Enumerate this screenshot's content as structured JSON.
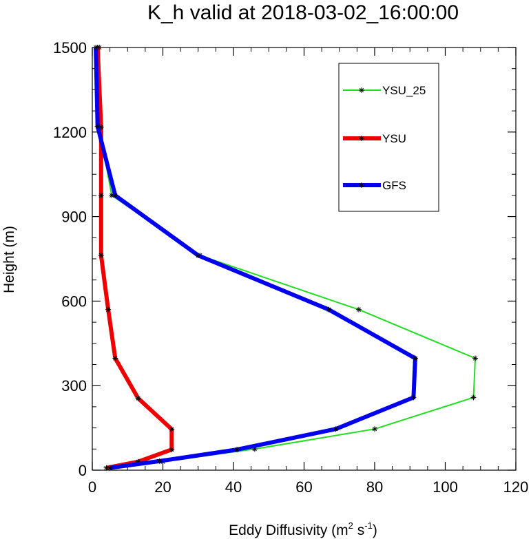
{
  "chart_data": {
    "type": "line",
    "title": "K_h valid at 2018-03-02_16:00:00",
    "xlabel": "Eddy Diffusivity (m² s⁻¹)",
    "xlabel_parts": {
      "base": "Eddy Diffusivity (m",
      "sup1": "2",
      "mid": " s",
      "sup2": "-1",
      "end": ")"
    },
    "ylabel": "Height (m)",
    "xlim": [
      0,
      120
    ],
    "ylim": [
      0,
      1500
    ],
    "xticks": [
      0,
      20,
      40,
      60,
      80,
      100,
      120
    ],
    "yticks": [
      0,
      300,
      600,
      900,
      1200,
      1500
    ],
    "grid": false,
    "legend_position": "top-right",
    "series": [
      {
        "name": "YSU_25",
        "color": "#22dd22",
        "width": 2,
        "points": [
          [
            5,
            8
          ],
          [
            20,
            30
          ],
          [
            46,
            75
          ],
          [
            80,
            146
          ],
          [
            108,
            258
          ],
          [
            108.5,
            397
          ],
          [
            75.5,
            570
          ],
          [
            30.5,
            762
          ],
          [
            5.5,
            975
          ],
          [
            2,
            1215
          ],
          [
            2,
            1500
          ]
        ]
      },
      {
        "name": "YSU",
        "color": "#ee0000",
        "width": 6,
        "points": [
          [
            4,
            8
          ],
          [
            13,
            30
          ],
          [
            22.5,
            73
          ],
          [
            22.5,
            145
          ],
          [
            13,
            255
          ],
          [
            6.5,
            397
          ],
          [
            4.5,
            570
          ],
          [
            2.5,
            762
          ],
          [
            2.5,
            975
          ],
          [
            2.5,
            1217
          ],
          [
            1.5,
            1500
          ]
        ]
      },
      {
        "name": "GFS",
        "color": "#0000ee",
        "width": 6,
        "points": [
          [
            5,
            8
          ],
          [
            19,
            32
          ],
          [
            41,
            73
          ],
          [
            69,
            146
          ],
          [
            91,
            258
          ],
          [
            91.5,
            397
          ],
          [
            67,
            570
          ],
          [
            30,
            762
          ],
          [
            6.5,
            975
          ],
          [
            1.5,
            1220
          ],
          [
            1,
            1500
          ]
        ]
      }
    ]
  }
}
